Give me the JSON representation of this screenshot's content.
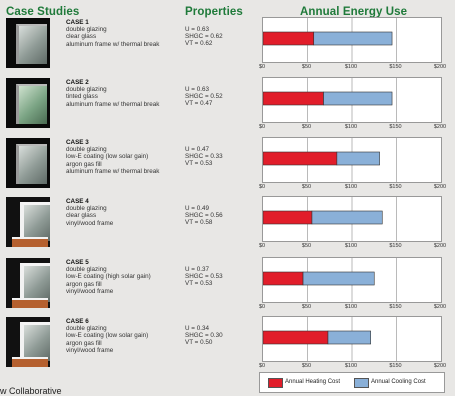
{
  "headers": {
    "case_studies": "Case Studies",
    "properties": "Properties",
    "energy": "Annual Energy Use"
  },
  "cases": [
    {
      "title": "CASE 1",
      "lines": [
        "double glazing",
        "clear glass",
        "aluminum frame w/ thermal break"
      ],
      "props": [
        "U = 0.63",
        "SHGC = 0.62",
        "VT = 0.62"
      ],
      "thumb": "clear-glass-aluminum"
    },
    {
      "title": "CASE 2",
      "lines": [
        "double glazing",
        "tinted glass",
        "aluminum frame w/ thermal break"
      ],
      "props": [
        "U = 0.63",
        "SHGC = 0.52",
        "VT = 0.47"
      ],
      "thumb": "tinted-glass-aluminum"
    },
    {
      "title": "CASE 3",
      "lines": [
        "double glazing",
        "low-E coating (low solar gain)",
        "argon gas fill",
        "aluminum frame w/ thermal break"
      ],
      "props": [
        "U = 0.47",
        "SHGC = 0.33",
        "VT = 0.53"
      ],
      "thumb": "lowe-glass-aluminum"
    },
    {
      "title": "CASE 4",
      "lines": [
        "double glazing",
        "clear glass",
        "vinyl/wood frame"
      ],
      "props": [
        "U = 0.49",
        "SHGC = 0.56",
        "VT = 0.58"
      ],
      "thumb": "clear-glass-wood"
    },
    {
      "title": "CASE 5",
      "lines": [
        "double glazing",
        "low-E coating (high solar gain)",
        "argon gas fill",
        "vinyl/wood frame"
      ],
      "props": [
        "U = 0.37",
        "SHGC = 0.53",
        "VT = 0.53"
      ],
      "thumb": "lowe-high-wood"
    },
    {
      "title": "CASE 6",
      "lines": [
        "double glazing",
        "low-E coating (low solar gain)",
        "argon gas fill",
        "vinyl/wood frame"
      ],
      "props": [
        "U = 0.34",
        "SHGC = 0.30",
        "VT = 0.50"
      ],
      "thumb": "lowe-low-wood"
    }
  ],
  "chart_data": {
    "type": "bar",
    "orientation": "horizontal",
    "stacked": true,
    "title": "Annual Energy Use",
    "categories": [
      "CASE 1",
      "CASE 2",
      "CASE 3",
      "CASE 4",
      "CASE 5",
      "CASE 6"
    ],
    "series": [
      {
        "name": "Annual Heating Cost",
        "color": "#e11d2a",
        "values": [
          57,
          68,
          83,
          55,
          45,
          73
        ]
      },
      {
        "name": "Annual Cooling Cost",
        "color": "#8ab0d8",
        "values": [
          88,
          77,
          48,
          79,
          80,
          48
        ]
      }
    ],
    "xlim": [
      0,
      200
    ],
    "xticks": [
      "$0",
      "$50",
      "$100",
      "$150",
      "$200"
    ],
    "grid": true,
    "legend": "bottom"
  },
  "footer": "w Collaborative"
}
